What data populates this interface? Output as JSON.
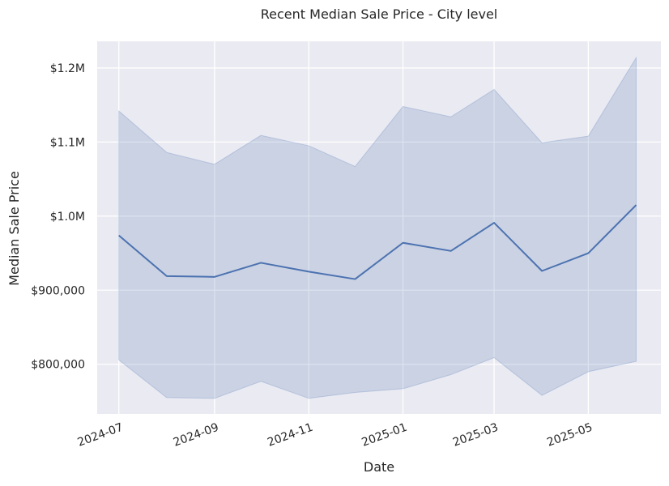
{
  "chart_data": {
    "type": "line",
    "title": "Recent Median Sale Price - City level",
    "xlabel": "Date",
    "ylabel": "Median Sale Price",
    "x_ticks": [
      "2024-07",
      "2024-09",
      "2024-11",
      "2025-01",
      "2025-03",
      "2025-05"
    ],
    "y_ticks": [
      {
        "value": 800000,
        "label": "$800,000"
      },
      {
        "value": 900000,
        "label": "$900,000"
      },
      {
        "value": 1000000,
        "label": "$1.0M"
      },
      {
        "value": 1100000,
        "label": "$1.1M"
      },
      {
        "value": 1200000,
        "label": "$1.2M"
      }
    ],
    "ylim": [
      733000,
      1236000
    ],
    "xlim": [
      "2024-06-17",
      "2025-06-17"
    ],
    "grid": true,
    "colors": {
      "background": "#eaeaf2",
      "grid": "#ffffff",
      "line": "#4c72b0",
      "band": "#4c72b0"
    },
    "series": [
      {
        "x": [
          "2024-07-01",
          "2024-08-01",
          "2024-09-01",
          "2024-10-01",
          "2024-11-01",
          "2024-12-01",
          "2025-01-01",
          "2025-02-01",
          "2025-03-01",
          "2025-04-01",
          "2025-05-01",
          "2025-06-01"
        ],
        "values": [
          974000,
          919000,
          918000,
          937000,
          925000,
          915000,
          964000,
          953000,
          991000,
          926000,
          950000,
          1015000
        ],
        "lower": [
          806000,
          755000,
          754000,
          777000,
          754000,
          762000,
          767000,
          786000,
          809000,
          758000,
          790000,
          804000
        ],
        "upper": [
          1142000,
          1086000,
          1070000,
          1109000,
          1095000,
          1067000,
          1148000,
          1134000,
          1171000,
          1099000,
          1108000,
          1214000
        ]
      }
    ]
  }
}
